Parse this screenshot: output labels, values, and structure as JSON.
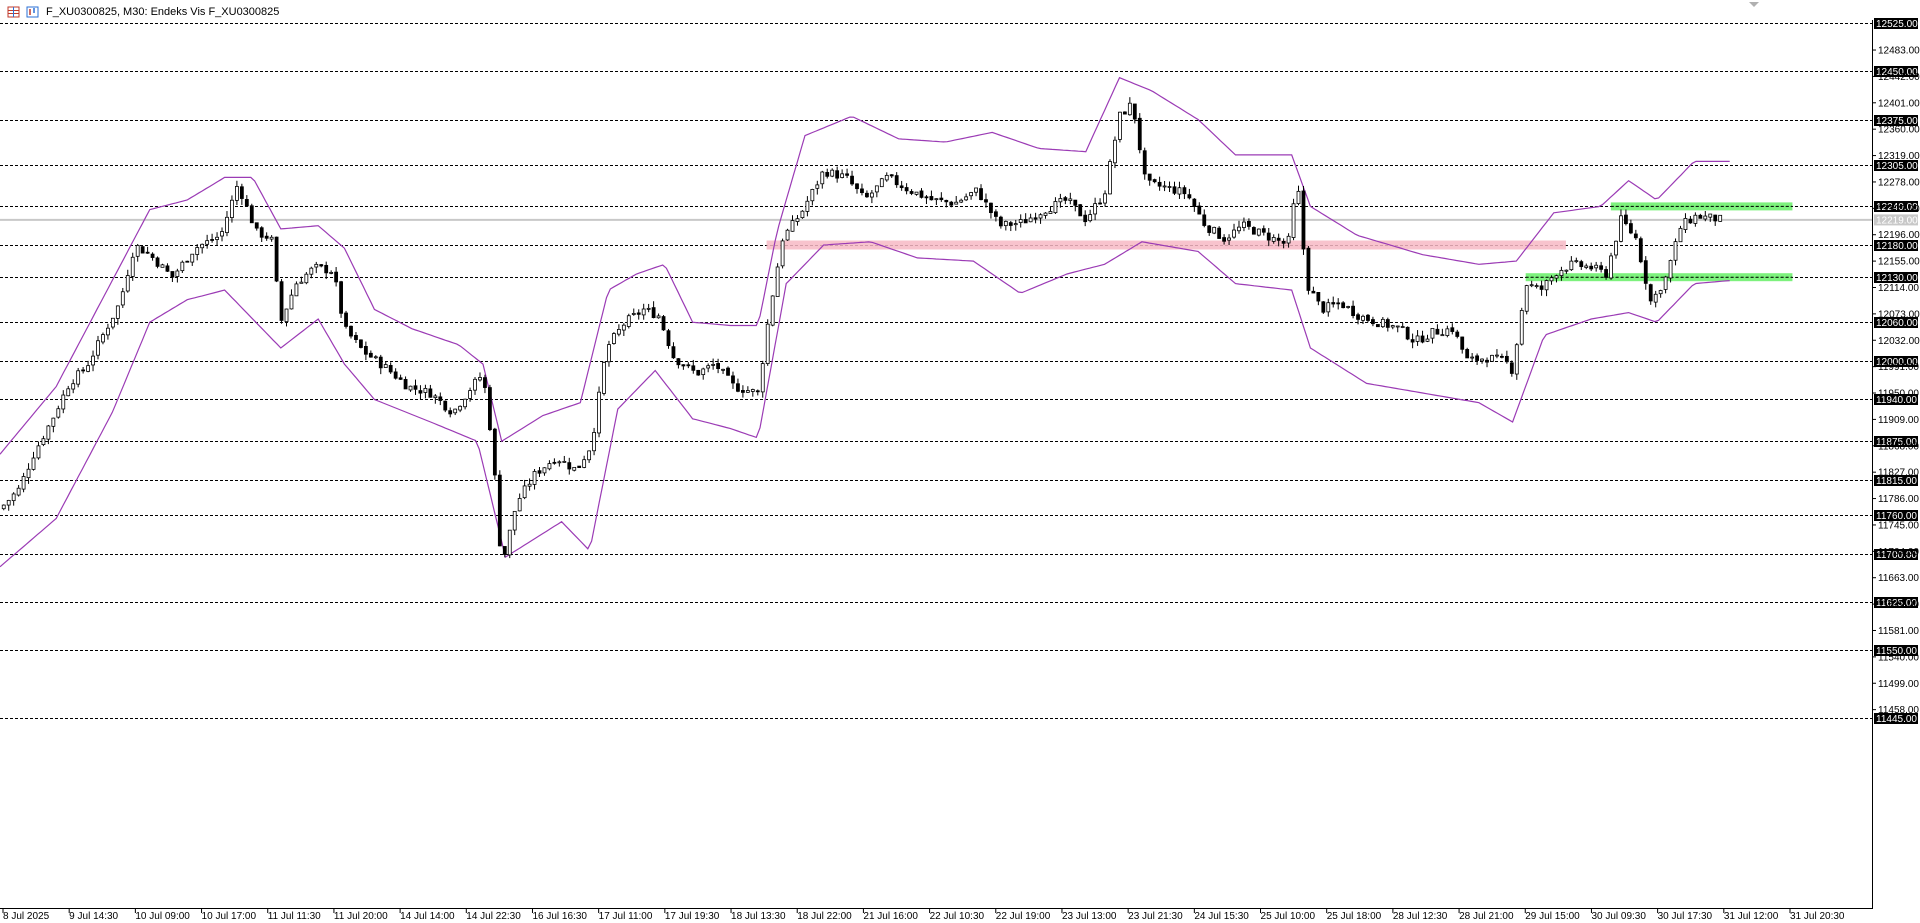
{
  "window": {
    "title": "F_XU0300825, M30:  Endeks Vis F_XU0300825",
    "icons": [
      "window-grid-icon",
      "chart-candles-icon",
      "scroll-indicator-icon"
    ]
  },
  "colors": {
    "bull": "#ffffff",
    "bear": "#000000",
    "wick": "#000000",
    "band": "#9b3bb5",
    "grid": "#000000",
    "support_zone": "#f7b8c4",
    "green_zone": "#66ee66",
    "current_price": "#c8c8c8",
    "level_label_bg": "#000000"
  },
  "chart_data": {
    "type": "candlestick",
    "symbol": "F_XU0300825",
    "timeframe": "M30",
    "indicator": "Endeks Vis F_XU0300825",
    "ylim": [
      11430,
      12540
    ],
    "current_price": 12219.0,
    "current_price_label": "12219.00",
    "y_ticks": [
      "12483.00",
      "12442.00",
      "12401.00",
      "12360.00",
      "12319.00",
      "12278.00",
      "12237.00",
      "12196.00",
      "12155.00",
      "12114.00",
      "12073.00",
      "12032.00",
      "11991.00",
      "11950.00",
      "11909.00",
      "11868.00",
      "11827.00",
      "11786.00",
      "11745.00",
      "11704.00",
      "11663.00",
      "11622.00",
      "11581.00",
      "11540.00",
      "11499.00",
      "11458.00"
    ],
    "levels": [
      "12525.00",
      "12450.00",
      "12375.00",
      "12305.00",
      "12240.00",
      "12180.00",
      "12130.00",
      "12060.00",
      "12000.00",
      "11940.00",
      "11875.00",
      "11815.00",
      "11760.00",
      "11700.00",
      "11625.00",
      "11550.00",
      "11445.00"
    ],
    "x_labels": [
      "8 Jul 2025",
      "9 Jul 14:30",
      "10 Jul 09:00",
      "10 Jul 17:00",
      "11 Jul 11:30",
      "11 Jul 20:00",
      "14 Jul 14:00",
      "14 Jul 22:30",
      "16 Jul 16:30",
      "17 Jul 11:00",
      "17 Jul 19:30",
      "18 Jul 13:30",
      "18 Jul 22:00",
      "21 Jul 16:00",
      "22 Jul 10:30",
      "22 Jul 19:00",
      "23 Jul 13:00",
      "23 Jul 21:30",
      "24 Jul 15:30",
      "25 Jul 10:00",
      "25 Jul 18:00",
      "28 Jul 12:30",
      "28 Jul 21:00",
      "29 Jul 15:00",
      "30 Jul 09:30",
      "30 Jul 17:30",
      "31 Jul 12:00",
      "31 Jul 20:30"
    ],
    "zones": [
      {
        "kind": "support",
        "y_from": 12173,
        "y_to": 12187,
        "t_from": 0.4095,
        "t_to": 0.8365
      },
      {
        "kind": "level",
        "y": 12240,
        "t_from": 0.8605,
        "t_to": 0.9575
      },
      {
        "kind": "level",
        "y": 12130,
        "t_from": 0.815,
        "t_to": 0.9575
      }
    ],
    "price_path": [
      [
        0.0,
        11770
      ],
      [
        0.01,
        11800
      ],
      [
        0.018,
        11855
      ],
      [
        0.028,
        11910
      ],
      [
        0.037,
        11965
      ],
      [
        0.046,
        11990
      ],
      [
        0.055,
        12040
      ],
      [
        0.064,
        12090
      ],
      [
        0.072,
        12180
      ],
      [
        0.08,
        12165
      ],
      [
        0.092,
        12130
      ],
      [
        0.104,
        12175
      ],
      [
        0.118,
        12195
      ],
      [
        0.127,
        12275
      ],
      [
        0.137,
        12200
      ],
      [
        0.145,
        12190
      ],
      [
        0.15,
        12060
      ],
      [
        0.158,
        12120
      ],
      [
        0.168,
        12145
      ],
      [
        0.178,
        12140
      ],
      [
        0.184,
        12050
      ],
      [
        0.194,
        12015
      ],
      [
        0.206,
        11990
      ],
      [
        0.218,
        11960
      ],
      [
        0.23,
        11950
      ],
      [
        0.242,
        11920
      ],
      [
        0.252,
        11960
      ],
      [
        0.258,
        11980
      ],
      [
        0.263,
        11870
      ],
      [
        0.268,
        11680
      ],
      [
        0.276,
        11780
      ],
      [
        0.286,
        11825
      ],
      [
        0.297,
        11850
      ],
      [
        0.308,
        11830
      ],
      [
        0.316,
        11870
      ],
      [
        0.324,
        12020
      ],
      [
        0.334,
        12060
      ],
      [
        0.344,
        12080
      ],
      [
        0.352,
        12070
      ],
      [
        0.36,
        12005
      ],
      [
        0.372,
        11980
      ],
      [
        0.382,
        11995
      ],
      [
        0.392,
        11960
      ],
      [
        0.405,
        11950
      ],
      [
        0.411,
        12075
      ],
      [
        0.418,
        12190
      ],
      [
        0.428,
        12230
      ],
      [
        0.44,
        12295
      ],
      [
        0.452,
        12285
      ],
      [
        0.462,
        12250
      ],
      [
        0.474,
        12285
      ],
      [
        0.486,
        12265
      ],
      [
        0.498,
        12250
      ],
      [
        0.51,
        12245
      ],
      [
        0.522,
        12265
      ],
      [
        0.534,
        12210
      ],
      [
        0.546,
        12215
      ],
      [
        0.558,
        12235
      ],
      [
        0.57,
        12250
      ],
      [
        0.58,
        12220
      ],
      [
        0.59,
        12260
      ],
      [
        0.598,
        12380
      ],
      [
        0.605,
        12400
      ],
      [
        0.612,
        12275
      ],
      [
        0.622,
        12270
      ],
      [
        0.634,
        12260
      ],
      [
        0.644,
        12210
      ],
      [
        0.654,
        12190
      ],
      [
        0.664,
        12210
      ],
      [
        0.676,
        12195
      ],
      [
        0.688,
        12180
      ],
      [
        0.693,
        12280
      ],
      [
        0.698,
        12120
      ],
      [
        0.706,
        12080
      ],
      [
        0.716,
        12090
      ],
      [
        0.726,
        12070
      ],
      [
        0.736,
        12060
      ],
      [
        0.748,
        12050
      ],
      [
        0.756,
        12030
      ],
      [
        0.766,
        12045
      ],
      [
        0.776,
        12050
      ],
      [
        0.784,
        12000
      ],
      [
        0.794,
        12005
      ],
      [
        0.804,
        12000
      ],
      [
        0.808,
        11985
      ],
      [
        0.815,
        12120
      ],
      [
        0.823,
        12110
      ],
      [
        0.832,
        12140
      ],
      [
        0.84,
        12150
      ],
      [
        0.85,
        12145
      ],
      [
        0.858,
        12135
      ],
      [
        0.866,
        12220
      ],
      [
        0.874,
        12190
      ],
      [
        0.882,
        12090
      ],
      [
        0.89,
        12130
      ],
      [
        0.898,
        12210
      ],
      [
        0.906,
        12225
      ],
      [
        0.914,
        12222
      ],
      [
        0.92,
        12219
      ]
    ],
    "band_upper": [
      [
        0.0,
        11855
      ],
      [
        0.03,
        11960
      ],
      [
        0.06,
        12125
      ],
      [
        0.08,
        12235
      ],
      [
        0.1,
        12250
      ],
      [
        0.12,
        12285
      ],
      [
        0.135,
        12285
      ],
      [
        0.15,
        12205
      ],
      [
        0.17,
        12210
      ],
      [
        0.184,
        12175
      ],
      [
        0.2,
        12080
      ],
      [
        0.22,
        12050
      ],
      [
        0.245,
        12025
      ],
      [
        0.258,
        11995
      ],
      [
        0.268,
        11875
      ],
      [
        0.29,
        11915
      ],
      [
        0.31,
        11935
      ],
      [
        0.325,
        12110
      ],
      [
        0.34,
        12135
      ],
      [
        0.355,
        12150
      ],
      [
        0.37,
        12060
      ],
      [
        0.39,
        12055
      ],
      [
        0.405,
        12055
      ],
      [
        0.415,
        12200
      ],
      [
        0.43,
        12350
      ],
      [
        0.455,
        12380
      ],
      [
        0.48,
        12345
      ],
      [
        0.505,
        12340
      ],
      [
        0.53,
        12355
      ],
      [
        0.555,
        12330
      ],
      [
        0.58,
        12325
      ],
      [
        0.598,
        12440
      ],
      [
        0.615,
        12420
      ],
      [
        0.64,
        12375
      ],
      [
        0.66,
        12320
      ],
      [
        0.69,
        12320
      ],
      [
        0.7,
        12240
      ],
      [
        0.725,
        12195
      ],
      [
        0.76,
        12165
      ],
      [
        0.79,
        12150
      ],
      [
        0.81,
        12155
      ],
      [
        0.83,
        12230
      ],
      [
        0.855,
        12240
      ],
      [
        0.87,
        12280
      ],
      [
        0.885,
        12250
      ],
      [
        0.905,
        12310
      ],
      [
        0.925,
        12310
      ]
    ],
    "band_lower": [
      [
        0.0,
        11680
      ],
      [
        0.03,
        11755
      ],
      [
        0.06,
        11920
      ],
      [
        0.08,
        12060
      ],
      [
        0.1,
        12095
      ],
      [
        0.12,
        12110
      ],
      [
        0.15,
        12020
      ],
      [
        0.17,
        12065
      ],
      [
        0.184,
        11995
      ],
      [
        0.2,
        11940
      ],
      [
        0.23,
        11905
      ],
      [
        0.255,
        11875
      ],
      [
        0.27,
        11695
      ],
      [
        0.3,
        11750
      ],
      [
        0.315,
        11705
      ],
      [
        0.33,
        11925
      ],
      [
        0.35,
        11985
      ],
      [
        0.37,
        11910
      ],
      [
        0.39,
        11895
      ],
      [
        0.405,
        11880
      ],
      [
        0.42,
        12120
      ],
      [
        0.44,
        12180
      ],
      [
        0.465,
        12185
      ],
      [
        0.49,
        12160
      ],
      [
        0.52,
        12155
      ],
      [
        0.545,
        12105
      ],
      [
        0.57,
        12135
      ],
      [
        0.59,
        12150
      ],
      [
        0.61,
        12185
      ],
      [
        0.64,
        12170
      ],
      [
        0.66,
        12120
      ],
      [
        0.69,
        12110
      ],
      [
        0.7,
        12020
      ],
      [
        0.73,
        11965
      ],
      [
        0.76,
        11950
      ],
      [
        0.79,
        11935
      ],
      [
        0.808,
        11905
      ],
      [
        0.825,
        12040
      ],
      [
        0.85,
        12065
      ],
      [
        0.87,
        12075
      ],
      [
        0.885,
        12060
      ],
      [
        0.905,
        12120
      ],
      [
        0.925,
        12125
      ]
    ]
  }
}
